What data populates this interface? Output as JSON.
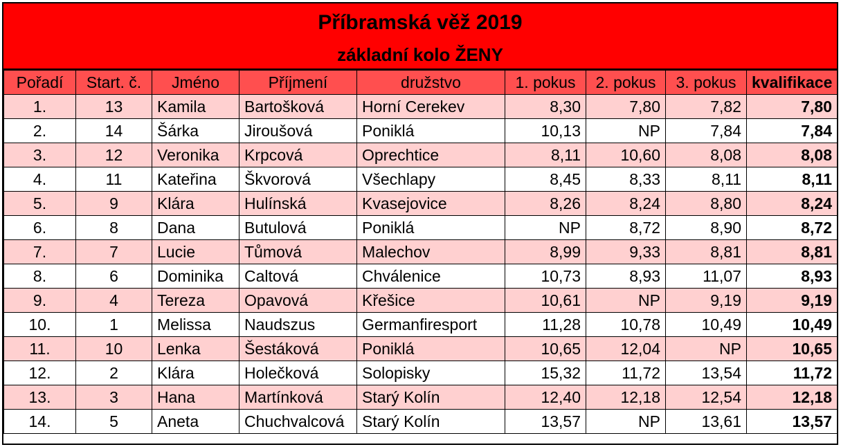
{
  "title": "Příbramská věž 2019",
  "subtitle": "základní kolo ŽENY",
  "columns": [
    "Pořadí",
    "Start. č.",
    "Jméno",
    "Příjmení",
    "družstvo",
    "1. pokus",
    "2. pokus",
    "3. pokus",
    "kvalifikace"
  ],
  "rows": [
    [
      "1.",
      "13",
      "Kamila",
      "Bartošková",
      "Horní Cerekev",
      "8,30",
      "7,80",
      "7,82",
      "7,80"
    ],
    [
      "2.",
      "14",
      "Šárka",
      "Jiroušová",
      "Poniklá",
      "10,13",
      "NP",
      "7,84",
      "7,84"
    ],
    [
      "3.",
      "12",
      "Veronika",
      "Krpcová",
      "Oprechtice",
      "8,11",
      "10,60",
      "8,08",
      "8,08"
    ],
    [
      "4.",
      "11",
      "Kateřina",
      "Škvorová",
      "Všechlapy",
      "8,45",
      "8,33",
      "8,11",
      "8,11"
    ],
    [
      "5.",
      "9",
      "Klára",
      "Hulínská",
      "Kvasejovice",
      "8,26",
      "8,24",
      "8,80",
      "8,24"
    ],
    [
      "6.",
      "8",
      "Dana",
      "Butulová",
      "Poniklá",
      "NP",
      "8,72",
      "8,90",
      "8,72"
    ],
    [
      "7.",
      "7",
      "Lucie",
      "Tůmová",
      "Malechov",
      "8,99",
      "9,33",
      "8,81",
      "8,81"
    ],
    [
      "8.",
      "6",
      "Dominika",
      "Caltová",
      "Chválenice",
      "10,73",
      "8,93",
      "11,07",
      "8,93"
    ],
    [
      "9.",
      "4",
      "Tereza",
      "Opavová",
      "Křešice",
      "10,61",
      "NP",
      "9,19",
      "9,19"
    ],
    [
      "10.",
      "1",
      "Melissa",
      "Naudszus",
      "Germanfiresport",
      "11,28",
      "10,78",
      "10,49",
      "10,49"
    ],
    [
      "11.",
      "10",
      "Lenka",
      "Šestáková",
      "Poniklá",
      "10,65",
      "12,04",
      "NP",
      "10,65"
    ],
    [
      "12.",
      "2",
      "Klára",
      "Holečková",
      "Solopisky",
      "15,32",
      "11,72",
      "13,54",
      "11,72"
    ],
    [
      "13.",
      "3",
      "Hana",
      "Martínková",
      "Starý Kolín",
      "12,40",
      "12,18",
      "12,54",
      "12,18"
    ],
    [
      "14.",
      "5",
      "Aneta",
      "Chuchvalcová",
      "Starý Kolín",
      "13,57",
      "NP",
      "13,61",
      "13,57"
    ]
  ],
  "colors": {
    "title_bg": "#ff0000",
    "header_bg": "#ff4f4f",
    "row_odd_bg": "#ffd0d0",
    "row_even_bg": "#ffffff"
  }
}
